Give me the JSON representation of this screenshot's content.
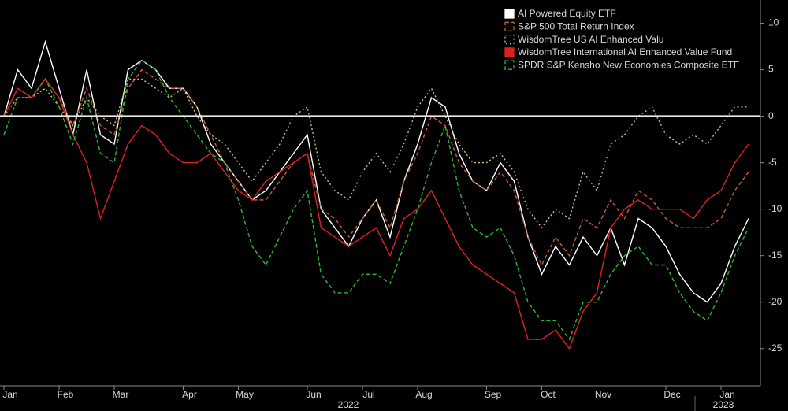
{
  "chart_data": {
    "type": "line",
    "categories": [
      "Jan",
      null,
      null,
      null,
      "Feb",
      null,
      null,
      null,
      "Mar",
      null,
      null,
      null,
      null,
      "Apr",
      null,
      null,
      null,
      "May",
      null,
      null,
      null,
      null,
      "Jun",
      null,
      null,
      null,
      "Jul",
      null,
      null,
      null,
      "Aug",
      null,
      null,
      null,
      null,
      "Sep",
      null,
      null,
      null,
      "Oct",
      null,
      null,
      null,
      "Nov",
      null,
      null,
      null,
      null,
      "Dec",
      null,
      null,
      null,
      "Jan",
      null,
      null
    ],
    "year_labels": [
      "2022",
      "2023"
    ],
    "series": [
      {
        "name": "AI Powered Equity ETF",
        "color": "#ffffff",
        "dash": "solid",
        "values": [
          0,
          5,
          3,
          8,
          3,
          -2,
          5,
          -2,
          -3,
          5,
          6,
          5,
          3,
          3,
          1,
          -3,
          -5,
          -7,
          -9,
          -8,
          -6,
          -4,
          -2,
          -10,
          -12,
          -14,
          -11,
          -9,
          -13,
          -7,
          -3,
          2,
          1,
          -4,
          -7,
          -8,
          -5,
          -7,
          -13,
          -17,
          -14,
          -16,
          -13,
          -15,
          -12,
          -16,
          -11,
          -12,
          -14,
          -17,
          -19,
          -20,
          -18,
          -14,
          -11
        ]
      },
      {
        "name": "S&P 500 Total Return Index",
        "color": "#c0603a",
        "dash": "dashed",
        "values": [
          0,
          3,
          2,
          4,
          2,
          -1,
          3,
          -1,
          -2,
          3,
          5,
          4,
          3,
          3,
          1,
          -2,
          -5,
          -7,
          -9,
          -9,
          -7,
          -5,
          -4,
          -10,
          -11,
          -13,
          -11,
          -9,
          -12,
          -7,
          -4,
          0,
          -1,
          -5,
          -7,
          -8,
          -6,
          -8,
          -13,
          -16,
          -13,
          -15,
          -11,
          -12,
          -9,
          -11,
          -8,
          -9,
          -11,
          -12,
          -12,
          -12,
          -11,
          -8,
          -6
        ]
      },
      {
        "name": "WisdomTree US AI Enhanced Valu",
        "color": "#c8c07a",
        "dash": "dotted",
        "values": [
          0,
          2,
          2,
          3,
          1,
          -1,
          2,
          0,
          -1,
          4,
          4,
          3,
          2,
          3,
          0,
          -2,
          -3,
          -5,
          -7,
          -5,
          -3,
          0,
          1,
          -6,
          -8,
          -9,
          -6,
          -4,
          -6,
          -3,
          1,
          3,
          0,
          -3,
          -5,
          -5,
          -4,
          -6,
          -10,
          -12,
          -10,
          -11,
          -6,
          -8,
          -3,
          -2,
          0,
          1,
          -2,
          -3,
          -2,
          -3,
          -1,
          1,
          1
        ]
      },
      {
        "name": "WisdomTree International AI Enhanced Value Fund",
        "color": "#e02020",
        "dash": "solid",
        "values": [
          0,
          3,
          2,
          4,
          2,
          -2,
          -5,
          -11,
          -7,
          -3,
          -1,
          -2,
          -4,
          -5,
          -5,
          -4,
          -6,
          -8,
          -9,
          -7,
          -6,
          -5,
          -4,
          -12,
          -13,
          -14,
          -13,
          -12,
          -15,
          -11,
          -10,
          -8,
          -11,
          -14,
          -16,
          -17,
          -18,
          -19,
          -24,
          -24,
          -23,
          -25,
          -21,
          -19,
          -12,
          -10,
          -9,
          -10,
          -10,
          -10,
          -11,
          -9,
          -8,
          -5,
          -3
        ]
      },
      {
        "name": "SPDR S&P Kensho New Economies Composite ETF",
        "color": "#2eb82e",
        "dash": "dashed",
        "values": [
          -2,
          2,
          2,
          4,
          1,
          -3,
          2,
          -4,
          -5,
          4,
          6,
          5,
          2,
          0,
          -2,
          -4,
          -5,
          -9,
          -14,
          -16,
          -13,
          -10,
          -8,
          -17,
          -19,
          -19,
          -17,
          -17,
          -18,
          -14,
          -10,
          -5,
          -1,
          -8,
          -12,
          -13,
          -12,
          -15,
          -20,
          -22,
          -22,
          -24,
          -20,
          -20,
          -17,
          -15,
          -14,
          -16,
          -16,
          -19,
          -21,
          -22,
          -19,
          -15,
          -12
        ]
      }
    ],
    "ylim": [
      -29,
      12.5
    ],
    "yticks": [
      -25,
      -20,
      -15,
      -10,
      -5,
      0,
      5,
      10
    ],
    "reference_line": 0,
    "legend": "top-right"
  }
}
